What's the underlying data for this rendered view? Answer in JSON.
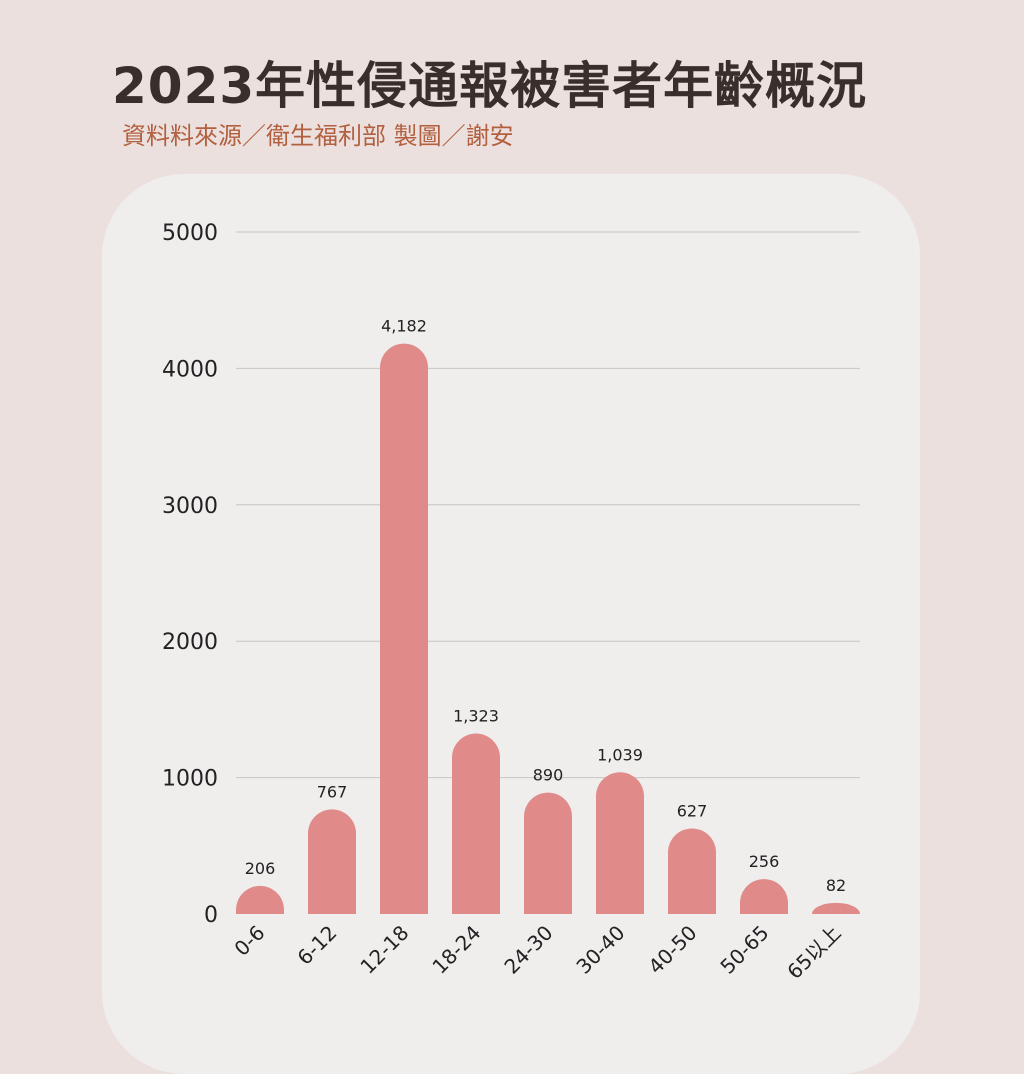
{
  "header": {
    "title": "2023年性侵通報被害者年齡概況",
    "subtitle": "資料料來源／衛生福利部 製圖／謝安"
  },
  "chart_data": {
    "type": "bar",
    "title": "2023年性侵通報被害者年齡概況",
    "xlabel": "",
    "ylabel": "",
    "categories": [
      "0-6",
      "6-12",
      "12-18",
      "18-24",
      "24-30",
      "30-40",
      "40-50",
      "50-65",
      "65以上"
    ],
    "values": [
      206,
      767,
      4182,
      1323,
      890,
      1039,
      627,
      256,
      82
    ],
    "value_labels": [
      "206",
      "767",
      "4,182",
      "1,323",
      "890",
      "1,039",
      "627",
      "256",
      "82"
    ],
    "ylim": [
      0,
      5000
    ],
    "yticks": [
      0,
      1000,
      2000,
      3000,
      4000,
      5000
    ],
    "ytick_labels": [
      "0",
      "1000",
      "2000",
      "3000",
      "4000",
      "5000"
    ],
    "grid": true,
    "legend": "none",
    "bar_color": "#e08a8a",
    "grid_color": "#c8c4c4"
  }
}
